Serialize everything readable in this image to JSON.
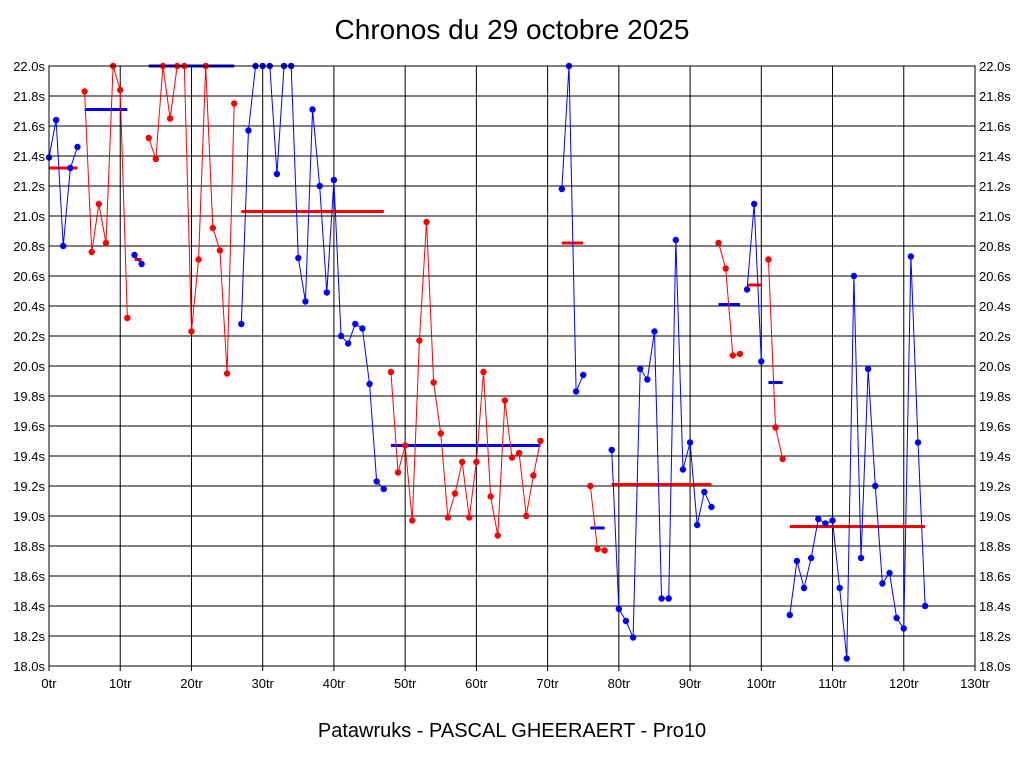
{
  "chart_data": {
    "type": "line",
    "title": "Chronos du 29 octobre 2025",
    "footer": "Patawruks - PASCAL GHEERAERT - Pro10",
    "xlabel": "",
    "ylabel": "",
    "xlim": [
      0,
      130
    ],
    "ylim": [
      18.0,
      22.0
    ],
    "grid": true,
    "x_ticks": [
      0,
      10,
      20,
      30,
      40,
      50,
      60,
      70,
      80,
      90,
      100,
      110,
      120,
      130
    ],
    "x_tick_labels": [
      "0tr",
      "10tr",
      "20tr",
      "30tr",
      "40tr",
      "50tr",
      "60tr",
      "70tr",
      "80tr",
      "90tr",
      "100tr",
      "110tr",
      "120tr",
      "130tr"
    ],
    "y_ticks": [
      18.0,
      18.2,
      18.4,
      18.6,
      18.8,
      19.0,
      19.2,
      19.4,
      19.6,
      19.8,
      20.0,
      20.2,
      20.4,
      20.6,
      20.8,
      21.0,
      21.2,
      21.4,
      21.6,
      21.8,
      22.0
    ],
    "y_tick_labels": [
      "18.0s",
      "18.2s",
      "18.4s",
      "18.6s",
      "18.8s",
      "19.0s",
      "19.2s",
      "19.4s",
      "19.6s",
      "19.8s",
      "20.0s",
      "20.2s",
      "20.4s",
      "20.6s",
      "20.8s",
      "21.0s",
      "21.2s",
      "21.4s",
      "21.6s",
      "21.8s",
      "22.0s"
    ],
    "colors": {
      "blue": "#0000ff",
      "red": "#ff0000",
      "grid": "#000000"
    },
    "segments": [
      {
        "color": "blue",
        "x": [
          0,
          1,
          2,
          3,
          4
        ],
        "y": [
          21.39,
          21.64,
          20.8,
          21.32,
          21.46
        ]
      },
      {
        "color": "red",
        "x": [
          5,
          6,
          7,
          8,
          9,
          10,
          11
        ],
        "y": [
          21.83,
          20.76,
          21.08,
          20.82,
          22.0,
          21.84,
          20.32
        ]
      },
      {
        "color": "blue",
        "x": [
          12,
          13
        ],
        "y": [
          20.74,
          20.68
        ]
      },
      {
        "color": "red",
        "x": [
          14,
          15,
          16,
          17,
          18,
          19,
          20,
          21,
          22,
          23,
          24,
          25,
          26
        ],
        "y": [
          21.52,
          21.38,
          22.0,
          21.65,
          22.0,
          22.0,
          20.23,
          20.71,
          22.0,
          20.92,
          20.77,
          19.95,
          21.75
        ]
      },
      {
        "color": "blue",
        "x": [
          27,
          28,
          29,
          30,
          31,
          32,
          33,
          34,
          35,
          36,
          37,
          38,
          39,
          40,
          41,
          42,
          43,
          44,
          45,
          46,
          47
        ],
        "y": [
          20.28,
          21.57,
          22.0,
          22.0,
          22.0,
          21.28,
          22.0,
          22.0,
          20.72,
          20.43,
          21.71,
          21.2,
          20.49,
          21.24,
          20.2,
          20.15,
          20.28,
          20.25,
          19.88,
          19.23,
          19.18
        ]
      },
      {
        "color": "red",
        "x": [
          48,
          49,
          50,
          51,
          52,
          53,
          54,
          55,
          56,
          57,
          58,
          59,
          60,
          61,
          62,
          63,
          64,
          65,
          66,
          67,
          68,
          69
        ],
        "y": [
          19.96,
          19.29,
          19.47,
          18.97,
          20.17,
          20.96,
          19.89,
          19.55,
          18.99,
          19.15,
          19.36,
          18.99,
          19.36,
          19.96,
          19.13,
          18.87,
          19.77,
          19.39,
          19.42,
          19.0,
          19.27,
          19.5
        ]
      },
      {
        "color": "blue",
        "x": [
          72,
          73,
          74,
          75
        ],
        "y": [
          21.18,
          22.0,
          19.83,
          19.94
        ]
      },
      {
        "color": "red",
        "x": [
          76,
          77,
          78
        ],
        "y": [
          19.2,
          18.78,
          18.77
        ]
      },
      {
        "color": "blue",
        "x": [
          79,
          80,
          81,
          82,
          83,
          84,
          85,
          86,
          87,
          88,
          89,
          90,
          91,
          92,
          93
        ],
        "y": [
          19.44,
          18.38,
          18.3,
          18.19,
          19.98,
          19.91,
          20.23,
          18.45,
          18.45,
          20.84,
          19.31,
          19.49,
          18.94,
          19.16,
          19.06
        ]
      },
      {
        "color": "red",
        "x": [
          94,
          95,
          96,
          97
        ],
        "y": [
          20.82,
          20.65,
          20.07,
          20.08
        ]
      },
      {
        "color": "blue",
        "x": [
          98,
          99,
          100
        ],
        "y": [
          20.51,
          21.08,
          20.03
        ]
      },
      {
        "color": "red",
        "x": [
          101,
          102,
          103
        ],
        "y": [
          20.71,
          19.59,
          19.38
        ]
      },
      {
        "color": "blue",
        "x": [
          104,
          105,
          106,
          107,
          108,
          109,
          110,
          111,
          112,
          113,
          114,
          115,
          116,
          117,
          118,
          119,
          120,
          121,
          122,
          123
        ],
        "y": [
          18.34,
          18.7,
          18.52,
          18.72,
          18.98,
          18.95,
          18.97,
          18.52,
          18.05,
          20.6,
          18.72,
          19.98,
          19.2,
          18.55,
          18.62,
          18.32,
          18.25,
          20.73,
          19.49,
          18.4
        ]
      }
    ],
    "averages": [
      {
        "color": "red",
        "x1": 0,
        "x2": 4,
        "y": 21.32
      },
      {
        "color": "blue",
        "x1": 5,
        "x2": 11,
        "y": 21.71
      },
      {
        "color": "red",
        "x1": 12,
        "x2": 13,
        "y": 20.71
      },
      {
        "color": "blue",
        "x1": 14,
        "x2": 26,
        "y": 22.0
      },
      {
        "color": "red",
        "x1": 27,
        "x2": 47,
        "y": 21.03
      },
      {
        "color": "blue",
        "x1": 48,
        "x2": 69,
        "y": 19.47
      },
      {
        "color": "red",
        "x1": 72,
        "x2": 75,
        "y": 20.82
      },
      {
        "color": "blue",
        "x1": 76,
        "x2": 78,
        "y": 18.92
      },
      {
        "color": "red",
        "x1": 79,
        "x2": 93,
        "y": 19.21
      },
      {
        "color": "blue",
        "x1": 94,
        "x2": 97,
        "y": 20.41
      },
      {
        "color": "red",
        "x1": 98,
        "x2": 100,
        "y": 20.54
      },
      {
        "color": "blue",
        "x1": 101,
        "x2": 103,
        "y": 19.89
      },
      {
        "color": "red",
        "x1": 104,
        "x2": 123,
        "y": 18.93
      }
    ]
  }
}
